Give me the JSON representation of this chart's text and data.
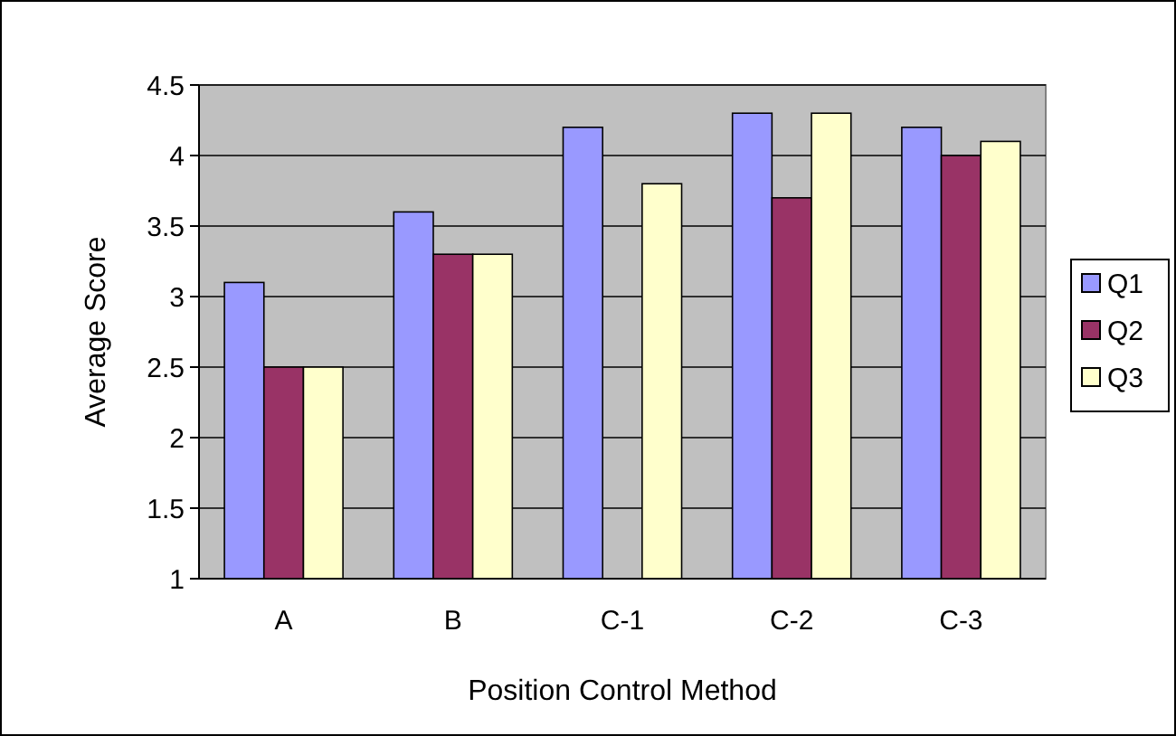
{
  "chart_data": {
    "type": "bar",
    "xlabel": "Position Control Method",
    "ylabel": "Average Score",
    "categories": [
      "A",
      "B",
      "C-1",
      "C-2",
      "C-3"
    ],
    "series": [
      {
        "name": "Q1",
        "color": "#9999ff",
        "values": [
          3.1,
          3.6,
          4.2,
          4.3,
          4.2
        ]
      },
      {
        "name": "Q2",
        "color": "#993366",
        "values": [
          2.5,
          3.3,
          null,
          3.7,
          4.0
        ]
      },
      {
        "name": "Q3",
        "color": "#ffffcc",
        "values": [
          2.5,
          3.3,
          3.8,
          4.3,
          4.1
        ]
      }
    ],
    "ylim": [
      1,
      4.5
    ],
    "yticks": [
      1,
      1.5,
      2,
      2.5,
      3,
      3.5,
      4,
      4.5
    ],
    "grid": "y",
    "legend": "right"
  }
}
